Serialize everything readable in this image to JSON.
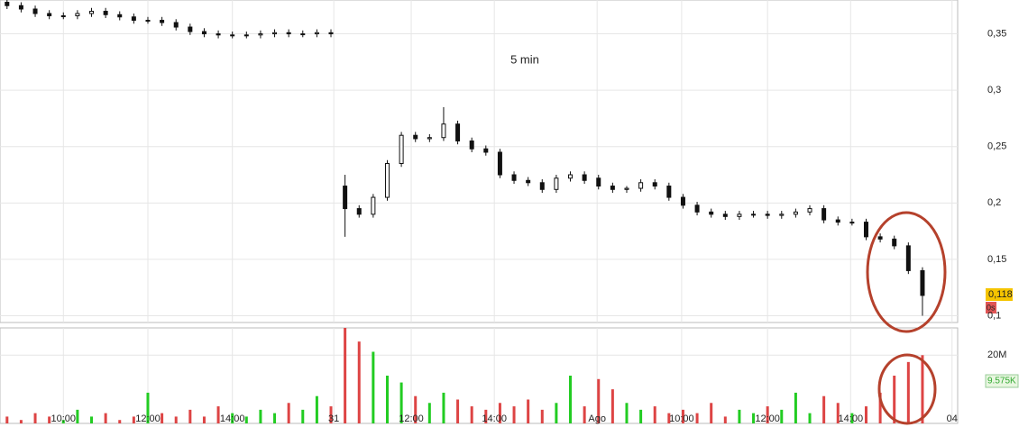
{
  "chart_data": {
    "type": "candlestick",
    "title": "5 min",
    "x": [
      0.5,
      1.5,
      2.5,
      3.5,
      4.5,
      5.5,
      6.5,
      7.5,
      8.5,
      9.5,
      10.5,
      11.5,
      12.5,
      13.5,
      14.5,
      15.5,
      16.5,
      17.5,
      18.5,
      19.5,
      20.5,
      21.5,
      22.5,
      23.5,
      24.5,
      25.5,
      26.5,
      27.5,
      28.5,
      29.5,
      30.5,
      31.5,
      32.5,
      33.5,
      34.5,
      35.5,
      36.5,
      37.5,
      38.5,
      39.5,
      40.5,
      41.5,
      42.5,
      43.5,
      44.5,
      45.5,
      46.5,
      47.5,
      48.5,
      49.5,
      50.5,
      51.5,
      52.5,
      53.5,
      54.5,
      55.5,
      56.5,
      57.5,
      58.5,
      59.5,
      60.5,
      61.5,
      62.5,
      63.5,
      64.5,
      65.5
    ],
    "open": [
      0.378,
      0.375,
      0.372,
      0.368,
      0.366,
      0.366,
      0.368,
      0.37,
      0.367,
      0.365,
      0.362,
      0.362,
      0.36,
      0.356,
      0.352,
      0.35,
      0.349,
      0.349,
      0.349,
      0.35,
      0.351,
      0.35,
      0.35,
      0.351,
      0.215,
      0.195,
      0.19,
      0.205,
      0.235,
      0.26,
      0.257,
      0.258,
      0.27,
      0.255,
      0.248,
      0.245,
      0.225,
      0.22,
      0.218,
      0.212,
      0.222,
      0.225,
      0.222,
      0.215,
      0.212,
      0.213,
      0.218,
      0.215,
      0.205,
      0.198,
      0.192,
      0.19,
      0.188,
      0.19,
      0.19,
      0.189,
      0.19,
      0.192,
      0.195,
      0.185,
      0.183,
      0.183,
      0.17,
      0.168,
      0.162,
      0.14
    ],
    "high": [
      0.381,
      0.378,
      0.375,
      0.371,
      0.369,
      0.371,
      0.373,
      0.373,
      0.37,
      0.368,
      0.365,
      0.365,
      0.363,
      0.359,
      0.355,
      0.353,
      0.352,
      0.352,
      0.353,
      0.354,
      0.354,
      0.353,
      0.354,
      0.354,
      0.225,
      0.198,
      0.208,
      0.238,
      0.263,
      0.263,
      0.261,
      0.285,
      0.273,
      0.258,
      0.251,
      0.248,
      0.228,
      0.223,
      0.221,
      0.225,
      0.228,
      0.228,
      0.225,
      0.218,
      0.215,
      0.221,
      0.221,
      0.218,
      0.208,
      0.201,
      0.195,
      0.193,
      0.193,
      0.193,
      0.193,
      0.193,
      0.195,
      0.198,
      0.198,
      0.188,
      0.186,
      0.186,
      0.173,
      0.171,
      0.165,
      0.143
    ],
    "low": [
      0.372,
      0.369,
      0.365,
      0.363,
      0.363,
      0.363,
      0.365,
      0.364,
      0.362,
      0.359,
      0.359,
      0.357,
      0.353,
      0.349,
      0.347,
      0.346,
      0.346,
      0.346,
      0.346,
      0.347,
      0.347,
      0.347,
      0.347,
      0.347,
      0.17,
      0.187,
      0.187,
      0.202,
      0.232,
      0.254,
      0.254,
      0.255,
      0.252,
      0.245,
      0.242,
      0.222,
      0.217,
      0.215,
      0.209,
      0.209,
      0.219,
      0.217,
      0.212,
      0.209,
      0.209,
      0.21,
      0.212,
      0.202,
      0.195,
      0.189,
      0.187,
      0.185,
      0.185,
      0.187,
      0.186,
      0.186,
      0.187,
      0.189,
      0.182,
      0.18,
      0.18,
      0.167,
      0.165,
      0.159,
      0.137,
      0.1
    ],
    "close": [
      0.375,
      0.372,
      0.368,
      0.366,
      0.366,
      0.368,
      0.37,
      0.367,
      0.365,
      0.362,
      0.362,
      0.36,
      0.356,
      0.352,
      0.35,
      0.349,
      0.349,
      0.349,
      0.35,
      0.351,
      0.35,
      0.35,
      0.351,
      0.35,
      0.195,
      0.19,
      0.205,
      0.235,
      0.26,
      0.257,
      0.258,
      0.27,
      0.255,
      0.248,
      0.245,
      0.225,
      0.22,
      0.218,
      0.212,
      0.222,
      0.225,
      0.22,
      0.215,
      0.212,
      0.213,
      0.218,
      0.215,
      0.205,
      0.198,
      0.192,
      0.19,
      0.188,
      0.19,
      0.19,
      0.189,
      0.19,
      0.192,
      0.195,
      0.185,
      0.183,
      0.183,
      0.17,
      0.168,
      0.162,
      0.14,
      0.118
    ],
    "volume": [
      2000000,
      1000000,
      3000000,
      2000000,
      1000000,
      4000000,
      2000000,
      3000000,
      1000000,
      2000000,
      9000000,
      3000000,
      2000000,
      4000000,
      2000000,
      5000000,
      3000000,
      2000000,
      4000000,
      3000000,
      6000000,
      4000000,
      8000000,
      5000000,
      28000000,
      24000000,
      21000000,
      14000000,
      12000000,
      8000000,
      6000000,
      9000000,
      7000000,
      5000000,
      4000000,
      6000000,
      5000000,
      7000000,
      4000000,
      6000000,
      14000000,
      5000000,
      13000000,
      10000000,
      6000000,
      4000000,
      5000000,
      3000000,
      4000000,
      3000000,
      6000000,
      2000000,
      4000000,
      3000000,
      5000000,
      4000000,
      9000000,
      3000000,
      8000000,
      6000000,
      3000000,
      5000000,
      9000000,
      14000000,
      18000000,
      20000000
    ],
    "up_color": "#22cc22",
    "down_color": "#dd4444",
    "candle_color": "#111111",
    "xlim": [
      0,
      68
    ],
    "xticks": [
      {
        "value": 4.5,
        "label": "10:00"
      },
      {
        "value": 10.5,
        "label": "12:00"
      },
      {
        "value": 16.5,
        "label": "14:00"
      },
      {
        "value": 23.7,
        "label": "31"
      },
      {
        "value": 29.2,
        "label": "12:00"
      },
      {
        "value": 35.1,
        "label": "14:00"
      },
      {
        "value": 42.4,
        "label": "Ago"
      },
      {
        "value": 48.4,
        "label": "10:00"
      },
      {
        "value": 54.5,
        "label": "12:00"
      },
      {
        "value": 60.4,
        "label": "14:00"
      },
      {
        "value": 67.6,
        "label": "04"
      }
    ],
    "ylim": [
      0.094,
      0.38
    ],
    "yticks": [
      {
        "value": 0.1,
        "label": "0,1"
      },
      {
        "value": 0.15,
        "label": "0,15"
      },
      {
        "value": 0.2,
        "label": "0,2"
      },
      {
        "value": 0.25,
        "label": "0,25"
      },
      {
        "value": 0.3,
        "label": "0,3"
      },
      {
        "value": 0.35,
        "label": "0,35"
      }
    ],
    "volume_ylim": [
      0,
      28000000
    ],
    "volume_yticks": [
      {
        "value": 20000000,
        "label": "20M"
      }
    ],
    "last_price": {
      "value": 0.118,
      "label": "0,118"
    },
    "countdown": "0s",
    "last_volume": {
      "value": 9575,
      "label": "9.575K"
    },
    "grid": true
  }
}
